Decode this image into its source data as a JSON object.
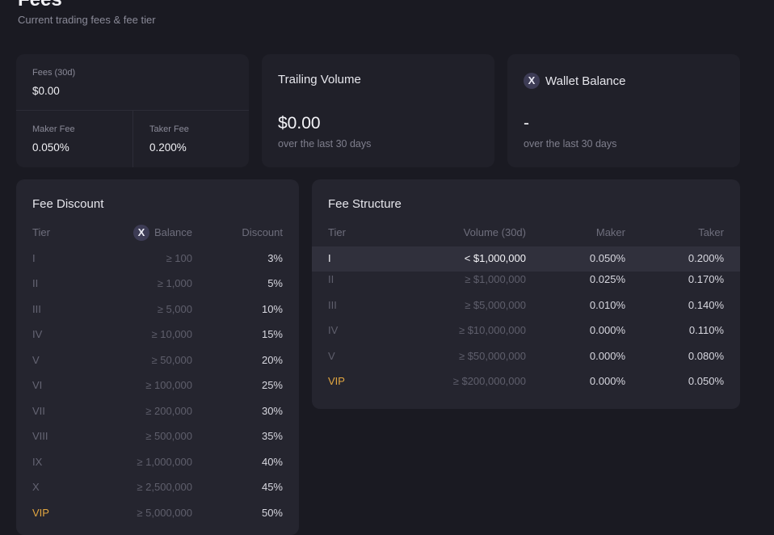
{
  "header": {
    "title": "Fees",
    "subtitle": "Current trading fees & fee tier"
  },
  "fees_card": {
    "fees_label": "Fees (30d)",
    "fees_value": "$0.00",
    "maker_label": "Maker Fee",
    "maker_value": "0.050%",
    "taker_label": "Taker Fee",
    "taker_value": "0.200%"
  },
  "volume_card": {
    "title": "Trailing Volume",
    "value": "$0.00",
    "caption": "over the last 30 days"
  },
  "wallet_card": {
    "icon_glyph": "X",
    "title": "Wallet Balance",
    "value": "-",
    "caption": "over the last 30 days"
  },
  "fee_discount": {
    "title": "Fee Discount",
    "columns": {
      "tier": "Tier",
      "balance": "Balance",
      "discount": "Discount"
    },
    "balance_icon_glyph": "X",
    "rows": [
      {
        "tier": "I",
        "balance": "≥ 100",
        "discount": "3%"
      },
      {
        "tier": "II",
        "balance": "≥ 1,000",
        "discount": "5%"
      },
      {
        "tier": "III",
        "balance": "≥ 5,000",
        "discount": "10%"
      },
      {
        "tier": "IV",
        "balance": "≥ 10,000",
        "discount": "15%"
      },
      {
        "tier": "V",
        "balance": "≥ 50,000",
        "discount": "20%"
      },
      {
        "tier": "VI",
        "balance": "≥ 100,000",
        "discount": "25%"
      },
      {
        "tier": "VII",
        "balance": "≥ 200,000",
        "discount": "30%"
      },
      {
        "tier": "VIII",
        "balance": "≥ 500,000",
        "discount": "35%"
      },
      {
        "tier": "IX",
        "balance": "≥ 1,000,000",
        "discount": "40%"
      },
      {
        "tier": "X",
        "balance": "≥ 2,500,000",
        "discount": "45%"
      },
      {
        "tier": "VIP",
        "balance": "≥ 5,000,000",
        "discount": "50%"
      }
    ]
  },
  "fee_structure": {
    "title": "Fee Structure",
    "columns": {
      "tier": "Tier",
      "volume": "Volume (30d)",
      "maker": "Maker",
      "taker": "Taker"
    },
    "rows": [
      {
        "tier": "I",
        "volume": "< $1,000,000",
        "maker": "0.050%",
        "taker": "0.200%"
      },
      {
        "tier": "II",
        "volume": "≥ $1,000,000",
        "maker": "0.025%",
        "taker": "0.170%"
      },
      {
        "tier": "III",
        "volume": "≥ $5,000,000",
        "maker": "0.010%",
        "taker": "0.140%"
      },
      {
        "tier": "IV",
        "volume": "≥ $10,000,000",
        "maker": "0.000%",
        "taker": "0.110%"
      },
      {
        "tier": "V",
        "volume": "≥ $50,000,000",
        "maker": "0.000%",
        "taker": "0.080%"
      },
      {
        "tier": "VIP",
        "volume": "≥ $200,000,000",
        "maker": "0.000%",
        "taker": "0.050%"
      }
    ]
  },
  "colors": {
    "background": "#1a1a22",
    "card": "#202029",
    "panel": "#25252f",
    "vip": "#e2a640",
    "active_row": "#30303c"
  }
}
